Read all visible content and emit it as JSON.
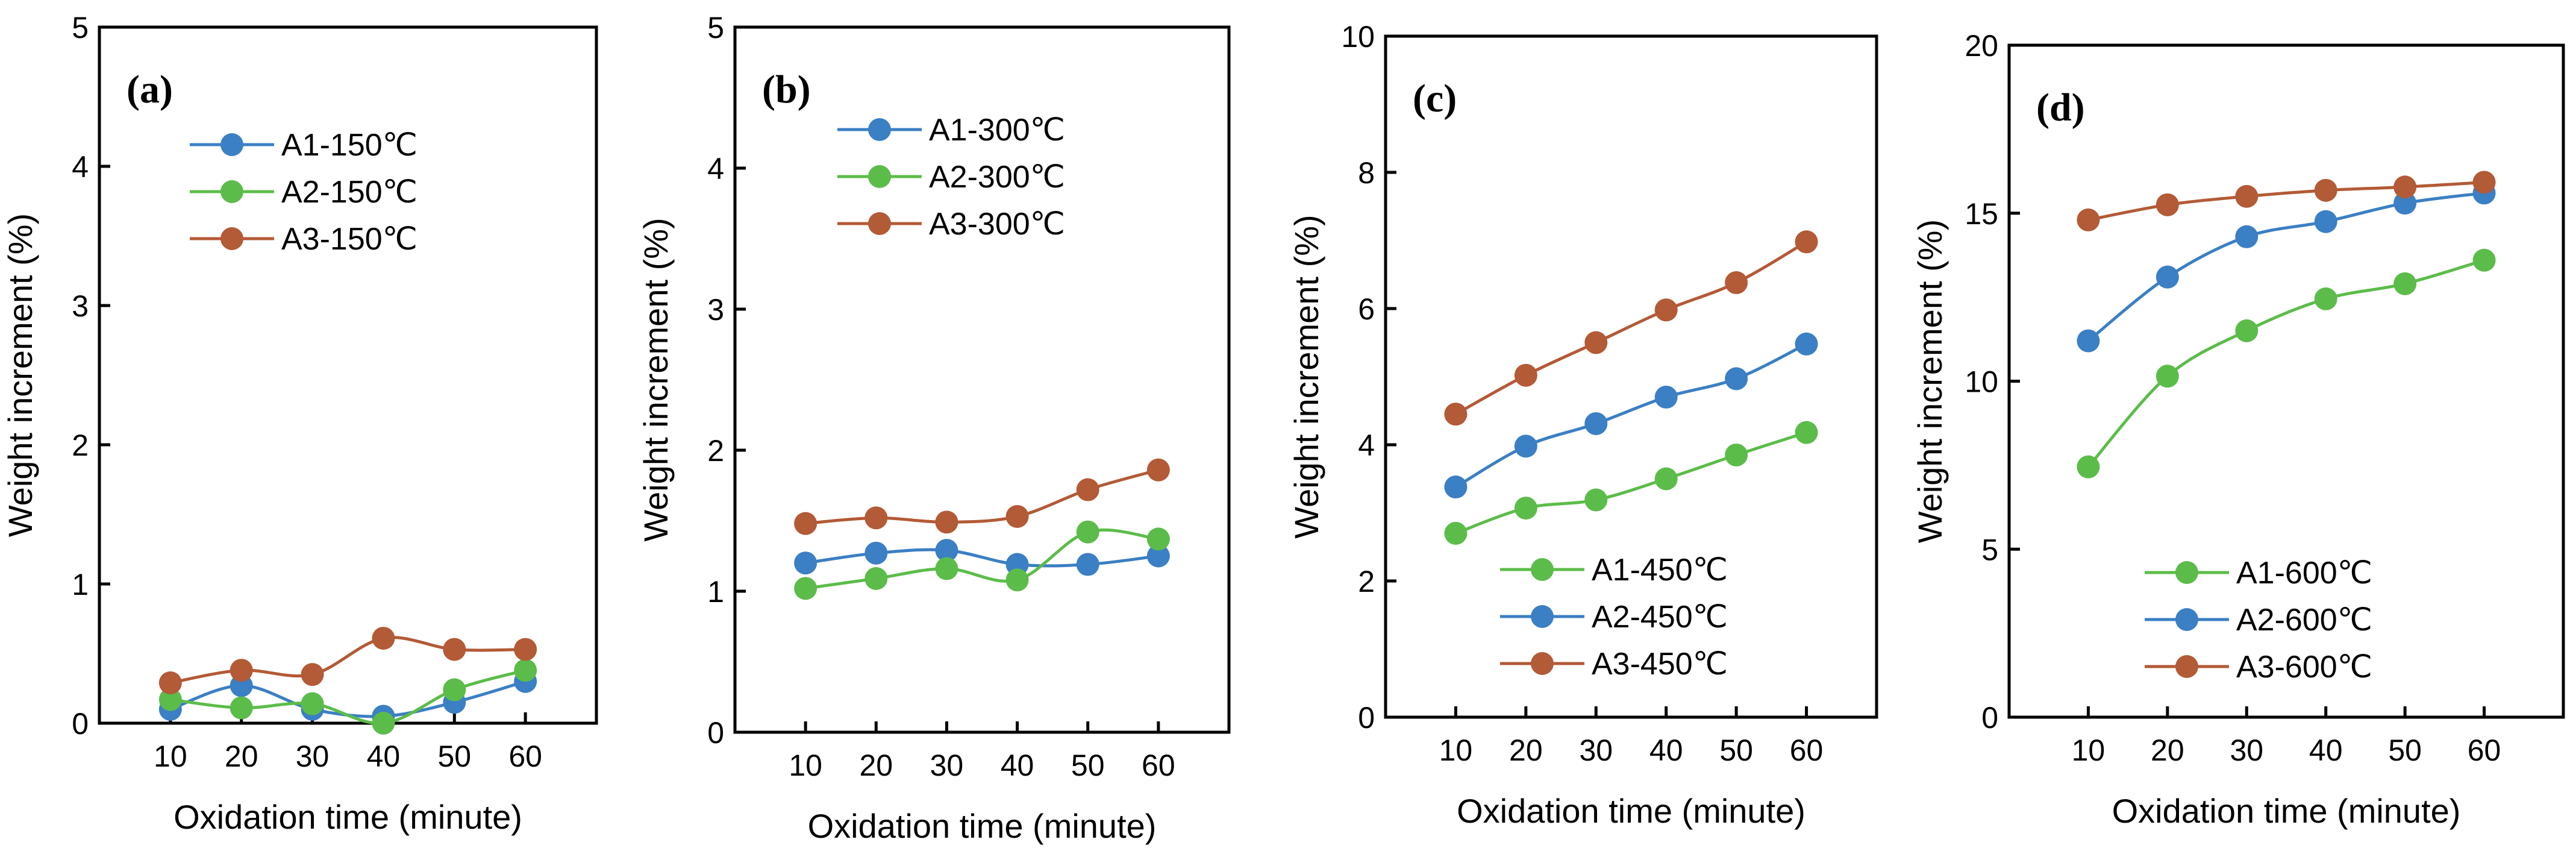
{
  "colors": {
    "A1": "#3b7fc4",
    "A2": "#5cbc4a",
    "A3": "#b35a36"
  },
  "chart_data": [
    {
      "type": "line",
      "panel_label": "(a)",
      "xlabel": "Oxidation time (minute)",
      "ylabel": "Weight increment (%)",
      "x": [
        10,
        20,
        30,
        40,
        50,
        60
      ],
      "xticks": [
        "10",
        "20",
        "30",
        "40",
        "50",
        "60"
      ],
      "xlim": [
        0,
        70
      ],
      "ylim": [
        0,
        5
      ],
      "yticks": [
        "0",
        "1",
        "2",
        "3",
        "4",
        "5"
      ],
      "legend_position": "upper-center",
      "series": [
        {
          "name": "A1-150℃",
          "key": "A1",
          "values": [
            0.1,
            0.27,
            0.1,
            0.05,
            0.15,
            0.3
          ]
        },
        {
          "name": "A2-150℃",
          "key": "A2",
          "values": [
            0.17,
            0.11,
            0.14,
            0.0,
            0.24,
            0.38
          ]
        },
        {
          "name": "A3-150℃",
          "key": "A3",
          "values": [
            0.29,
            0.38,
            0.35,
            0.61,
            0.53,
            0.53
          ]
        }
      ]
    },
    {
      "type": "line",
      "panel_label": "(b)",
      "xlabel": "Oxidation time (minute)",
      "ylabel": "Weight increment (%)",
      "x": [
        10,
        20,
        30,
        40,
        50,
        60
      ],
      "xticks": [
        "10",
        "20",
        "30",
        "40",
        "50",
        "60"
      ],
      "xlim": [
        0,
        70
      ],
      "ylim": [
        0,
        5
      ],
      "yticks": [
        "0",
        "1",
        "2",
        "3",
        "4",
        "5"
      ],
      "legend_position": "upper-center",
      "series": [
        {
          "name": "A1-300℃",
          "key": "A1",
          "values": [
            1.2,
            1.27,
            1.29,
            1.19,
            1.19,
            1.25
          ]
        },
        {
          "name": "A2-300℃",
          "key": "A2",
          "values": [
            1.02,
            1.09,
            1.16,
            1.08,
            1.42,
            1.37
          ]
        },
        {
          "name": "A3-300℃",
          "key": "A3",
          "values": [
            1.48,
            1.52,
            1.49,
            1.53,
            1.72,
            1.86
          ]
        }
      ]
    },
    {
      "type": "line",
      "panel_label": "(c)",
      "xlabel": "Oxidation time (minute)",
      "ylabel": "Weight increment (%)",
      "x": [
        10,
        20,
        30,
        40,
        50,
        60
      ],
      "xticks": [
        "10",
        "20",
        "30",
        "40",
        "50",
        "60"
      ],
      "xlim": [
        0,
        70
      ],
      "ylim": [
        0,
        10
      ],
      "yticks": [
        "0",
        "2",
        "4",
        "6",
        "8",
        "10"
      ],
      "legend_position": "lower-center",
      "series": [
        {
          "name": "A1-450℃",
          "key": "A2",
          "values": [
            2.7,
            3.07,
            3.19,
            3.5,
            3.85,
            4.18
          ]
        },
        {
          "name": "A2-450℃",
          "key": "A1",
          "values": [
            3.38,
            3.98,
            4.31,
            4.7,
            4.97,
            5.48
          ]
        },
        {
          "name": "A3-450℃",
          "key": "A3",
          "values": [
            4.45,
            5.02,
            5.5,
            5.98,
            6.38,
            6.98
          ]
        }
      ]
    },
    {
      "type": "line",
      "panel_label": "(d)",
      "xlabel": "Oxidation time (minute)",
      "ylabel": "Weight increment (%)",
      "x": [
        10,
        20,
        30,
        40,
        50,
        60
      ],
      "xticks": [
        "10",
        "20",
        "30",
        "40",
        "50",
        "60"
      ],
      "xlim": [
        0,
        70
      ],
      "ylim": [
        0,
        20
      ],
      "yticks": [
        "0",
        "5",
        "10",
        "15",
        "20"
      ],
      "legend_position": "lower-center",
      "series": [
        {
          "name": "A1-600℃",
          "key": "A2",
          "values": [
            7.45,
            10.15,
            11.5,
            12.45,
            12.9,
            13.6
          ]
        },
        {
          "name": "A2-600℃",
          "key": "A1",
          "values": [
            11.2,
            13.1,
            14.3,
            14.75,
            15.3,
            15.6
          ]
        },
        {
          "name": "A3-600℃",
          "key": "A3",
          "values": [
            14.8,
            15.25,
            15.5,
            15.68,
            15.78,
            15.92
          ]
        }
      ]
    }
  ]
}
